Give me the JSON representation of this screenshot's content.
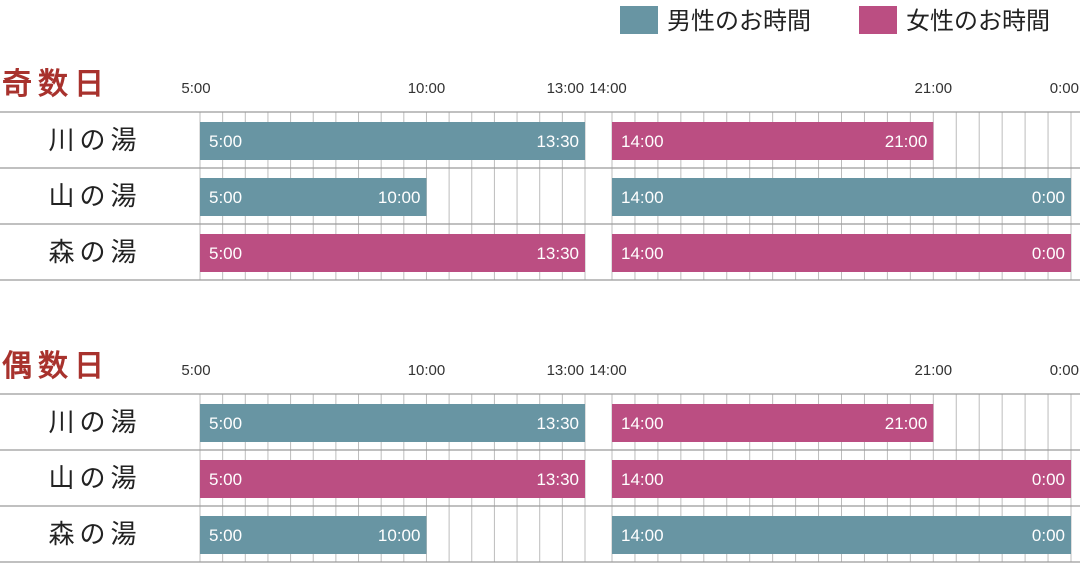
{
  "colors": {
    "male": "#6895a3",
    "female": "#bb4e82",
    "title": "#a8322d",
    "grid": "#bcbcbc",
    "baseline": "#9a9a9a"
  },
  "legend": [
    {
      "key": "male",
      "label": "男性のお時間"
    },
    {
      "key": "female",
      "label": "女性のお時間"
    }
  ],
  "chart_data": {
    "type": "bar",
    "orientation": "horizontal",
    "axis_ticks": [
      "5:00",
      "10:00",
      "13:00",
      "14:00",
      "21:00",
      "0:00"
    ],
    "panels": [
      {
        "title": "奇数日",
        "rows": [
          {
            "name": "川の湯",
            "bars": [
              {
                "start": 5,
                "end": 13.5,
                "group": "male",
                "start_label": "5:00",
                "end_label": "13:30"
              },
              {
                "start": 14,
                "end": 21,
                "group": "female",
                "start_label": "14:00",
                "end_label": "21:00"
              }
            ]
          },
          {
            "name": "山の湯",
            "bars": [
              {
                "start": 5,
                "end": 10,
                "group": "male",
                "start_label": "5:00",
                "end_label": "10:00"
              },
              {
                "start": 14,
                "end": 24,
                "group": "male",
                "start_label": "14:00",
                "end_label": "0:00"
              }
            ]
          },
          {
            "name": "森の湯",
            "bars": [
              {
                "start": 5,
                "end": 13.5,
                "group": "female",
                "start_label": "5:00",
                "end_label": "13:30"
              },
              {
                "start": 14,
                "end": 24,
                "group": "female",
                "start_label": "14:00",
                "end_label": "0:00"
              }
            ]
          }
        ]
      },
      {
        "title": "偶数日",
        "rows": [
          {
            "name": "川の湯",
            "bars": [
              {
                "start": 5,
                "end": 13.5,
                "group": "male",
                "start_label": "5:00",
                "end_label": "13:30"
              },
              {
                "start": 14,
                "end": 21,
                "group": "female",
                "start_label": "14:00",
                "end_label": "21:00"
              }
            ]
          },
          {
            "name": "山の湯",
            "bars": [
              {
                "start": 5,
                "end": 13.5,
                "group": "female",
                "start_label": "5:00",
                "end_label": "13:30"
              },
              {
                "start": 14,
                "end": 24,
                "group": "female",
                "start_label": "14:00",
                "end_label": "0:00"
              }
            ]
          },
          {
            "name": "森の湯",
            "bars": [
              {
                "start": 5,
                "end": 10,
                "group": "male",
                "start_label": "5:00",
                "end_label": "10:00"
              },
              {
                "start": 14,
                "end": 24,
                "group": "male",
                "start_label": "14:00",
                "end_label": "0:00"
              }
            ]
          }
        ]
      }
    ]
  }
}
